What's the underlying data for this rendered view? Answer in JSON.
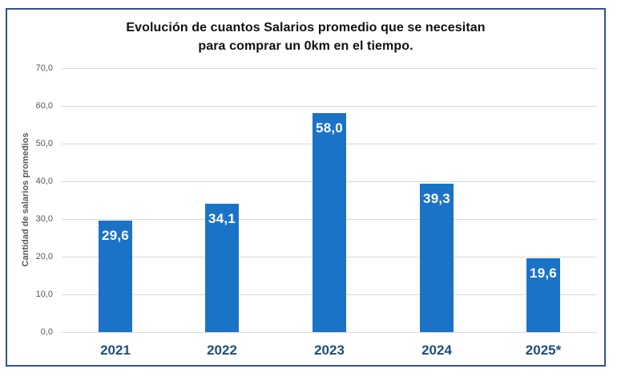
{
  "title": {
    "line1": "Evolución de cuantos Salarios promedio que se necesitan",
    "line2": "para comprar un 0km en el tiempo."
  },
  "chart_data": {
    "type": "bar",
    "title": "Evolución de cuantos Salarios promedio que se necesitan para comprar un 0km en el tiempo.",
    "categories": [
      "2021",
      "2022",
      "2023",
      "2024",
      "2025*"
    ],
    "values": [
      29.6,
      34.1,
      58.0,
      39.3,
      19.6
    ],
    "bar_labels": [
      "29,6",
      "34,1",
      "58,0",
      "39,3",
      "19,6"
    ],
    "xlabel": "",
    "ylabel": "Cantidad de salarios promedios",
    "ylim": [
      0,
      70
    ],
    "yticks": [
      0,
      10,
      20,
      30,
      40,
      50,
      60,
      70
    ],
    "ytick_labels": [
      "0,0",
      "10,0",
      "20,0",
      "30,0",
      "40,0",
      "50,0",
      "60,0",
      "70,0"
    ],
    "grid": true,
    "legend": false,
    "colors": {
      "bar": "#1B73C8",
      "bar_label": "#FFFFFF",
      "category_label": "#1F4E79",
      "tick_label": "#595959",
      "gridline": "#D9D9D9",
      "title": "#111111",
      "axis_title": "#595959",
      "frame_border": "#32509C"
    }
  }
}
